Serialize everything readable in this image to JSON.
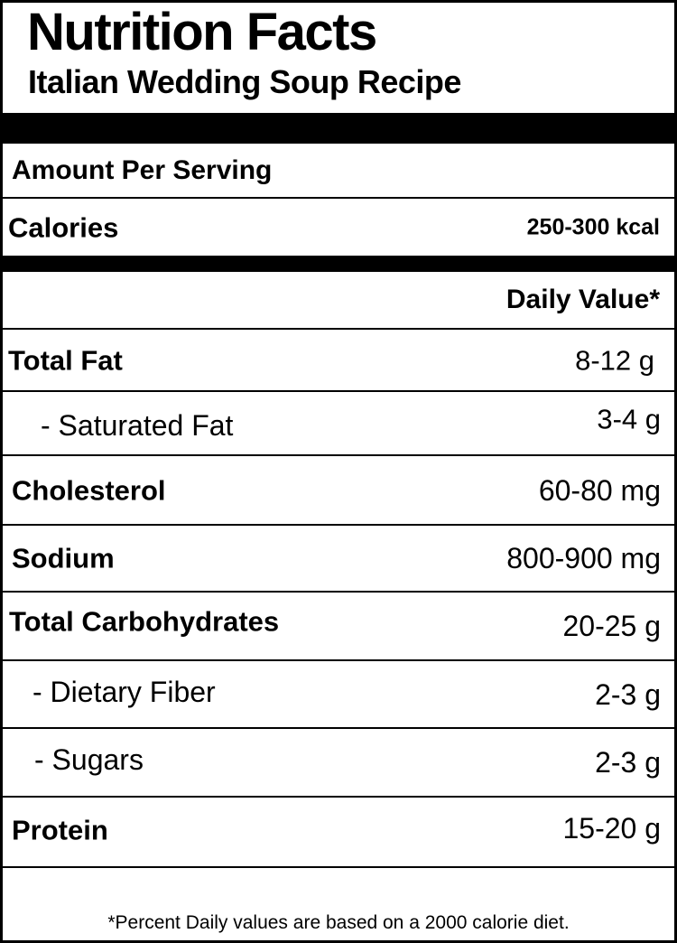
{
  "label": {
    "title": "Nutrition Facts",
    "subtitle": "Italian Wedding Soup Recipe",
    "amount_per_serving": "Amount Per Serving",
    "calories_label": "Calories",
    "calories_value": "250-300 kcal",
    "daily_value_header": "Daily Value*",
    "nutrients": [
      {
        "name": "Total Fat",
        "value": "8-12 g"
      },
      {
        "name": "- Saturated Fat",
        "value": "3-4 g"
      },
      {
        "name": "Cholesterol",
        "value": "60-80 mg"
      },
      {
        "name": "Sodium",
        "value": "800-900 mg"
      },
      {
        "name": "Total Carbohydrates",
        "value": "20-25 g"
      },
      {
        "name": "- Dietary Fiber",
        "value": "2-3 g"
      },
      {
        "name": "- Sugars",
        "value": "2-3 g"
      },
      {
        "name": "Protein",
        "value": "15-20 g"
      }
    ],
    "footnote": "*Percent Daily values are based on a 2000 calorie diet."
  }
}
